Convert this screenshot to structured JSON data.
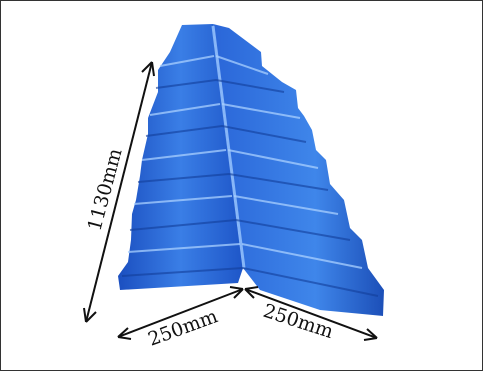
{
  "product": {
    "name_icon": "blue-ridge-cap-tile",
    "color": "#2e6fd6",
    "highlight_color": "#8fc0ff",
    "shadow_color": "#14409a"
  },
  "dimensions": {
    "length": "1130mm",
    "left_width": "250mm",
    "right_width": "250mm",
    "arrow_color": "#111111"
  }
}
